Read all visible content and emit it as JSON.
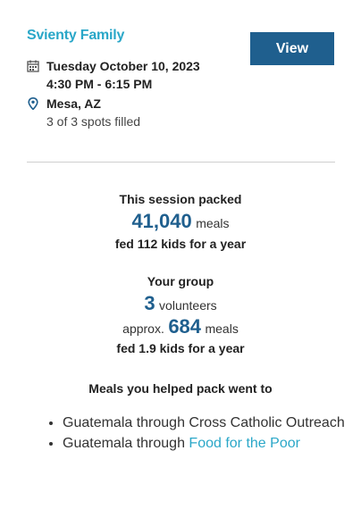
{
  "event": {
    "title": "Svienty Family",
    "view_label": "View",
    "date": "Tuesday October 10, 2023",
    "time": "4:30 PM - 6:15 PM",
    "location": "Mesa, AZ",
    "spots": "3 of 3 spots filled",
    "icons": [
      "calendar-icon",
      "location-pin-icon"
    ]
  },
  "session": {
    "heading": "This session packed",
    "meals_number": "41,040",
    "meals_unit": "meals",
    "fed": "fed 112 kids for a year"
  },
  "group": {
    "heading": "Your group",
    "volunteers_number": "3",
    "volunteers_unit": "volunteers",
    "approx_prefix": "approx.",
    "meals_number": "684",
    "meals_unit": "meals",
    "fed": "fed 1.9 kids for a year"
  },
  "destinations": {
    "heading": "Meals you helped pack went to",
    "items": [
      {
        "text": "Guatemala through Cross Catholic Outreach"
      },
      {
        "prefix": "Guatemala through ",
        "link": "Food for the Poor"
      }
    ]
  },
  "colors": {
    "accent": "#2aa7c8",
    "primary": "#1f5f8e"
  }
}
